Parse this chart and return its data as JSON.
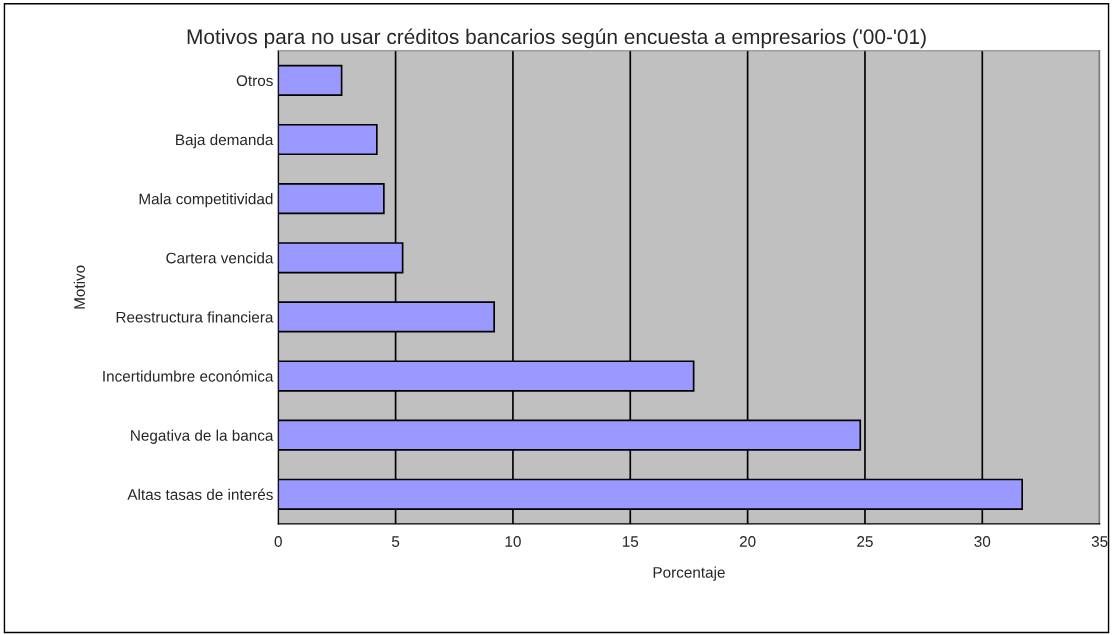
{
  "chart_data": {
    "type": "bar",
    "orientation": "horizontal",
    "title": "Motivos para no usar créditos bancarios según encuesta a empresarios ('00-'01)",
    "xlabel": "Porcentaje",
    "ylabel": "Motivo",
    "categories": [
      "Otros",
      "Baja demanda",
      "Mala competitividad",
      "Cartera vencida",
      "Reestructura financiera",
      "Incertidumbre económica",
      "Negativa de la banca",
      "Altas tasas de interés"
    ],
    "values": [
      2.7,
      4.2,
      4.5,
      5.3,
      9.2,
      17.7,
      24.8,
      31.7
    ],
    "color": "#9999ff",
    "xlim": [
      0,
      35
    ],
    "xticks": [
      0,
      5,
      10,
      15,
      20,
      25,
      30,
      35
    ],
    "grid": "x",
    "legend": false
  }
}
